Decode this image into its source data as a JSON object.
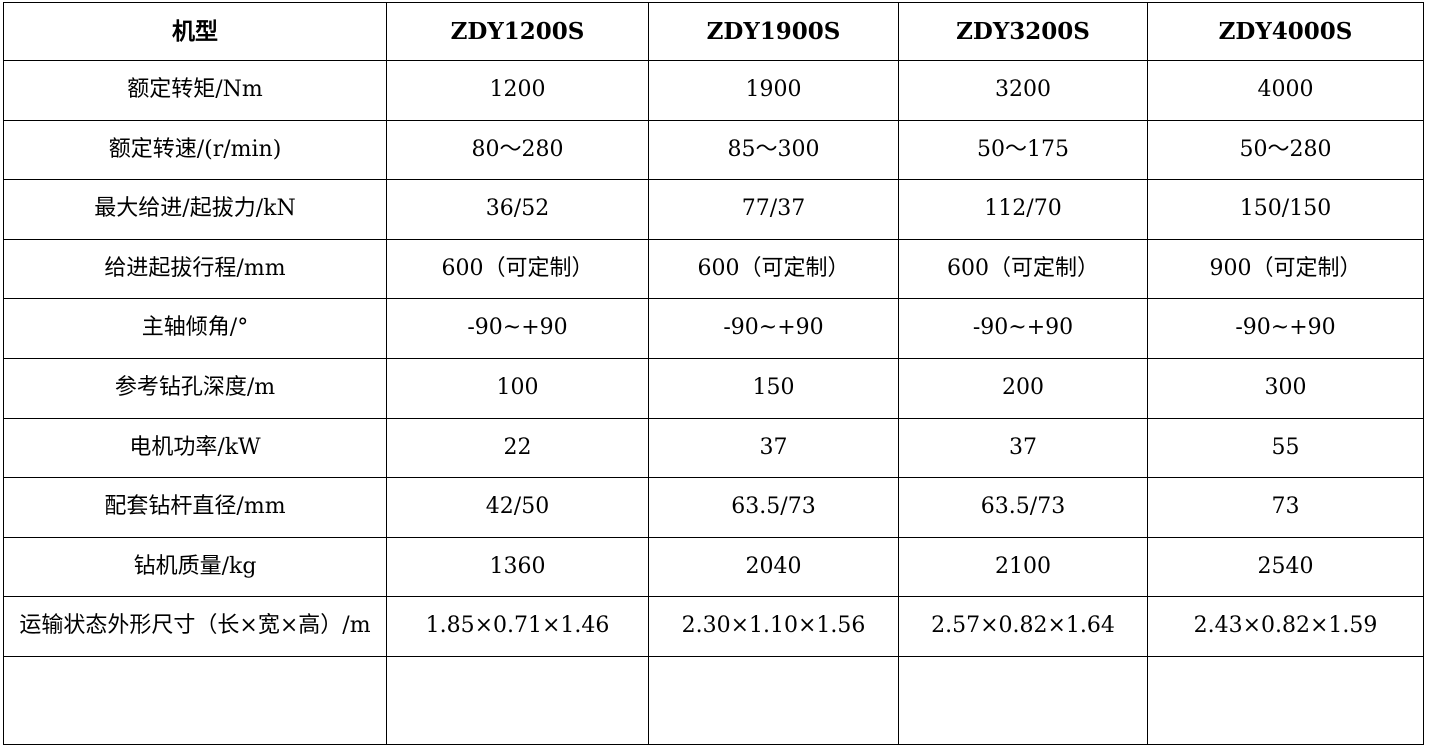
{
  "header": [
    "机型",
    "ZDY1200S",
    "ZDY1900S",
    "ZDY3200S",
    "ZDY4000S"
  ],
  "rows": [
    {
      "label": "额定转矩/Nm",
      "values": [
        "1200",
        "1900",
        "3200",
        "4000"
      ]
    },
    {
      "label": "额定转速/(r/min)",
      "values": [
        "80～280",
        "85～300",
        "50～175",
        "50～280"
      ]
    },
    {
      "label": "最大给进/起拔力/kN",
      "values": [
        "36/52",
        "77/37",
        "112/70",
        "150/150"
      ]
    },
    {
      "label": "给进起拔行程/mm",
      "values": [
        "600（可定制）",
        "600（可定制）",
        "600（可定制）",
        "900（可定制）"
      ]
    },
    {
      "label": "主轴倾角/°",
      "values": [
        "-90~+90",
        "-90~+90",
        "-90~+90",
        "-90~+90"
      ]
    },
    {
      "label": "参考钻孔深度/m",
      "values": [
        "100",
        "150",
        "200",
        "300"
      ]
    },
    {
      "label": "电机功率/kW",
      "values": [
        "22",
        "37",
        "37",
        "55"
      ]
    },
    {
      "label": "配套钻杆直径/mm",
      "values": [
        "42/50",
        "63.5/73",
        "63.5/73",
        "73"
      ]
    },
    {
      "label": "钻机质量/kg",
      "values": [
        "1360",
        "2040",
        "2100",
        "2540"
      ]
    },
    {
      "label": "运输状态外形尺寸（长×宽×高）/m",
      "values": [
        "1.85×0.71×1.46",
        "2.30×1.10×1.56",
        "2.57×0.82×1.64",
        "2.43×0.82×1.59"
      ]
    }
  ]
}
